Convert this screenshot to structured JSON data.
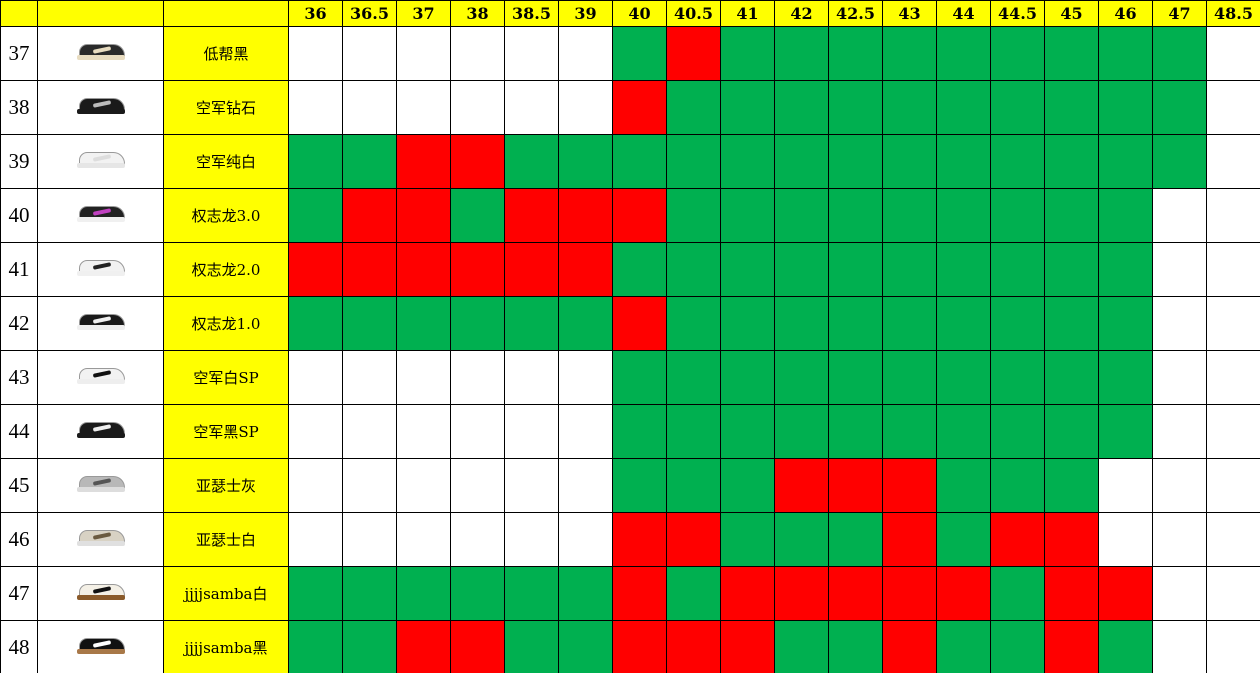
{
  "colors": {
    "header": "#FFFF00",
    "name_cell": "#FFFF00",
    "G": "#00B050",
    "R": "#FF0000",
    "W": "#FFFFFF"
  },
  "sizes": [
    "36",
    "36.5",
    "37",
    "38",
    "38.5",
    "39",
    "40",
    "40.5",
    "41",
    "42",
    "42.5",
    "43",
    "44",
    "44.5",
    "45",
    "46",
    "47",
    "48.5"
  ],
  "rows": [
    {
      "num": "37",
      "name": "低帮黑",
      "shoe": {
        "upper": "#2a2a2a",
        "sole": "#e8dcc0",
        "accent": "#e8dcc0"
      },
      "cells": "WWWWWWGRGGGGGGGGGW"
    },
    {
      "num": "38",
      "name": "空军钻石",
      "shoe": {
        "upper": "#1a1a1a",
        "sole": "#1a1a1a",
        "accent": "#bbbbbb"
      },
      "cells": "WWWWWWRGGGGGGGGGGW"
    },
    {
      "num": "39",
      "name": "空军纯白",
      "shoe": {
        "upper": "#f2f2f2",
        "sole": "#e6e6e6",
        "accent": "#dddddd"
      },
      "cells": "GGRRGGGGGGGGGGGGGW"
    },
    {
      "num": "40",
      "name": "权志龙3.0",
      "shoe": {
        "upper": "#222222",
        "sole": "#f0f0f0",
        "accent": "#c040c0"
      },
      "cells": "GRRGRRRGGGGGGGGGWW"
    },
    {
      "num": "41",
      "name": "权志龙2.0",
      "shoe": {
        "upper": "#f2f2f2",
        "sole": "#f0f0f0",
        "accent": "#222222"
      },
      "cells": "RRRRRRGGGGGGGGGGWW"
    },
    {
      "num": "42",
      "name": "权志龙1.0",
      "shoe": {
        "upper": "#1a1a1a",
        "sole": "#f0f0f0",
        "accent": "#f0f0f0"
      },
      "cells": "GGGGGGRGGGGGGGGGWW"
    },
    {
      "num": "43",
      "name": "空军白SP",
      "shoe": {
        "upper": "#f2f2f2",
        "sole": "#eeeeee",
        "accent": "#111111"
      },
      "cells": "WWWWWWGGGGGGGGGGWW"
    },
    {
      "num": "44",
      "name": "空军黑SP",
      "shoe": {
        "upper": "#1a1a1a",
        "sole": "#1a1a1a",
        "accent": "#eeeeee"
      },
      "cells": "WWWWWWGGGGGGGGGGWW"
    },
    {
      "num": "45",
      "name": "亚瑟士灰",
      "shoe": {
        "upper": "#b8b8b8",
        "sole": "#dddddd",
        "accent": "#555555"
      },
      "cells": "WWWWWWGGGRRRGGGWWW"
    },
    {
      "num": "46",
      "name": "亚瑟士白",
      "shoe": {
        "upper": "#d8d2c4",
        "sole": "#e0e0e0",
        "accent": "#6a5a40"
      },
      "cells": "WWWWWWRRGGGRGRRWWW"
    },
    {
      "num": "47",
      "name": "jjjjsamba白",
      "shoe": {
        "upper": "#f4f0e6",
        "sole": "#8a5a2a",
        "accent": "#111111"
      },
      "cells": "GGGGGGRGRRRRRGRRWW"
    },
    {
      "num": "48",
      "name": "jjjjsamba黑",
      "shoe": {
        "upper": "#111111",
        "sole": "#a87848",
        "accent": "#ffffff"
      },
      "cells": "GGRRGGRRRGGRGGRGWW"
    }
  ]
}
